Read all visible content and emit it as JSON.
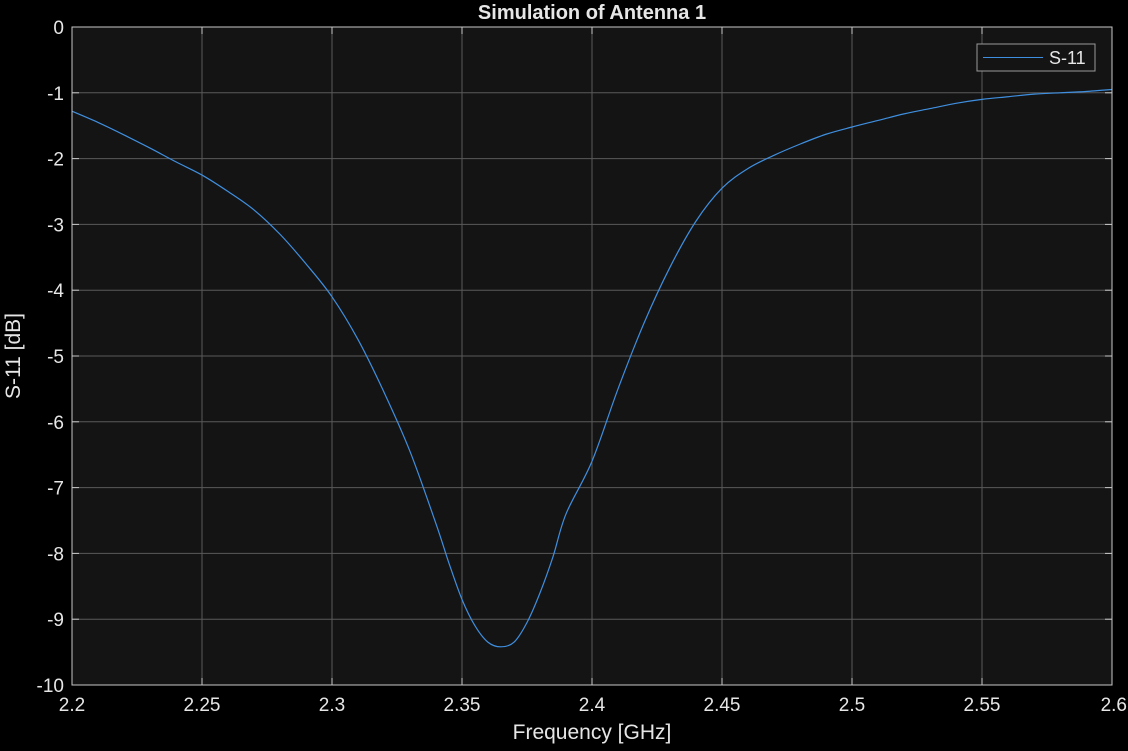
{
  "colors": {
    "background": "#000000",
    "axes_background": "#141414",
    "grid": "#5a5a5a",
    "axis_line": "#c8c8c8",
    "text": "#e6e6e6",
    "series": "#3f8fe0",
    "legend_border": "#9a9a9a"
  },
  "chart_data": {
    "type": "line",
    "title": "Simulation of Antenna 1",
    "xlabel": "Frequency [GHz]",
    "ylabel": "S-11 [dB]",
    "xlim": [
      2.2,
      2.6
    ],
    "ylim": [
      -10,
      0
    ],
    "xticks": [
      2.2,
      2.25,
      2.3,
      2.35,
      2.4,
      2.45,
      2.5,
      2.55,
      2.6
    ],
    "xtick_labels": [
      "2.2",
      "2.25",
      "2.3",
      "2.35",
      "2.4",
      "2.45",
      "2.5",
      "2.55",
      "2.6"
    ],
    "yticks": [
      0,
      -1,
      -2,
      -3,
      -4,
      -5,
      -6,
      -7,
      -8,
      -9,
      -10
    ],
    "ytick_labels": [
      "0",
      "-1",
      "-2",
      "-3",
      "-4",
      "-5",
      "-6",
      "-7",
      "-8",
      "-9",
      "-10"
    ],
    "grid": true,
    "legend_position": "top-right",
    "series": [
      {
        "name": "S-11",
        "x": [
          2.2,
          2.21,
          2.22,
          2.23,
          2.24,
          2.25,
          2.26,
          2.27,
          2.28,
          2.29,
          2.3,
          2.31,
          2.32,
          2.33,
          2.34,
          2.345,
          2.35,
          2.355,
          2.36,
          2.365,
          2.37,
          2.375,
          2.38,
          2.385,
          2.39,
          2.4,
          2.41,
          2.42,
          2.43,
          2.44,
          2.45,
          2.46,
          2.47,
          2.48,
          2.49,
          2.5,
          2.51,
          2.52,
          2.53,
          2.54,
          2.55,
          2.56,
          2.57,
          2.58,
          2.59,
          2.6
        ],
        "y": [
          -1.28,
          -1.45,
          -1.64,
          -1.84,
          -2.05,
          -2.25,
          -2.5,
          -2.78,
          -3.15,
          -3.6,
          -4.1,
          -4.75,
          -5.55,
          -6.45,
          -7.55,
          -8.15,
          -8.7,
          -9.1,
          -9.35,
          -9.42,
          -9.35,
          -9.05,
          -8.6,
          -8.05,
          -7.4,
          -6.6,
          -5.5,
          -4.5,
          -3.65,
          -2.95,
          -2.45,
          -2.15,
          -1.95,
          -1.78,
          -1.63,
          -1.52,
          -1.42,
          -1.32,
          -1.24,
          -1.16,
          -1.1,
          -1.06,
          -1.02,
          -1.0,
          -0.98,
          -0.95
        ]
      }
    ]
  }
}
